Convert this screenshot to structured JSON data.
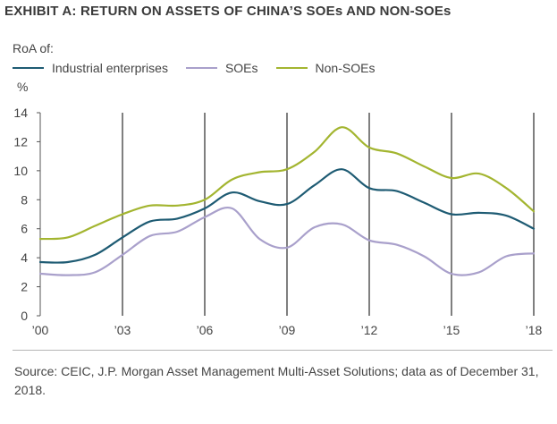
{
  "title": "EXHIBIT A: RETURN ON ASSETS OF CHINA’S SOEs AND NON-SOEs",
  "legend_header": "RoA of:",
  "unit": "%",
  "source": "Source: CEIC, J.P. Morgan Asset Management Multi-Asset Solutions; data as of December 31, 2018.",
  "chart_data": {
    "type": "line",
    "title": "EXHIBIT A: RETURN ON ASSETS OF CHINA’S SOEs AND NON-SOEs",
    "ylabel": "%",
    "xlabel": "",
    "ylim": [
      0,
      14
    ],
    "xlim": [
      2000,
      2018
    ],
    "yticks": [
      0,
      2,
      4,
      6,
      8,
      10,
      12,
      14
    ],
    "xticks": [
      2000,
      2003,
      2006,
      2009,
      2012,
      2015,
      2018
    ],
    "xtick_labels": [
      "’00",
      "’03",
      "’06",
      "’09",
      "’12",
      "’15",
      "’18"
    ],
    "vertical_gridlines": [
      2003,
      2006,
      2009,
      2012,
      2015,
      2018
    ],
    "legend_position": "top-left",
    "x": [
      2000,
      2001,
      2002,
      2003,
      2004,
      2005,
      2006,
      2007,
      2008,
      2009,
      2010,
      2011,
      2012,
      2013,
      2014,
      2015,
      2016,
      2017,
      2018
    ],
    "series": [
      {
        "name": "Industrial enterprises",
        "color": "#1e5b73",
        "values": [
          3.7,
          3.7,
          4.2,
          5.4,
          6.5,
          6.7,
          7.4,
          8.5,
          7.9,
          7.7,
          9.0,
          10.1,
          8.8,
          8.6,
          7.8,
          7.0,
          7.1,
          6.9,
          6.0
        ]
      },
      {
        "name": "SOEs",
        "color": "#a9a0cb",
        "values": [
          2.9,
          2.8,
          3.0,
          4.2,
          5.5,
          5.8,
          6.8,
          7.4,
          5.3,
          4.7,
          6.1,
          6.3,
          5.2,
          4.9,
          4.1,
          2.9,
          3.0,
          4.1,
          4.3
        ]
      },
      {
        "name": "Non-SOEs",
        "color": "#a3b530",
        "values": [
          5.3,
          5.4,
          6.2,
          7.0,
          7.6,
          7.6,
          8.0,
          9.4,
          9.9,
          10.1,
          11.3,
          13.0,
          11.6,
          11.2,
          10.3,
          9.5,
          9.8,
          8.8,
          7.2
        ]
      }
    ]
  }
}
